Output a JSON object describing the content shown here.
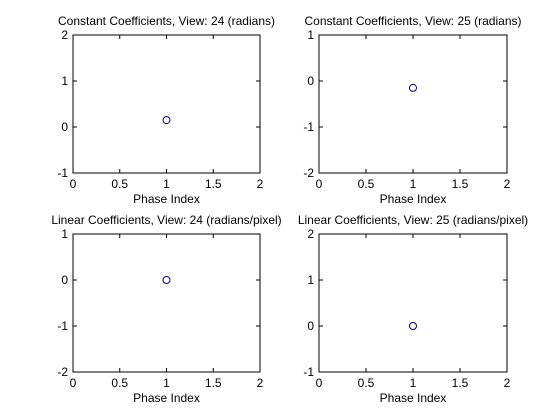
{
  "chart_data": [
    {
      "type": "scatter",
      "title": "Constant Coefficients, View: 24 (radians)",
      "xlabel": "Phase Index",
      "ylabel": "",
      "xlim": [
        0,
        2
      ],
      "ylim": [
        -1,
        2
      ],
      "xticks": [
        "0",
        "0.5",
        "1",
        "1.5",
        "2"
      ],
      "yticks": [
        "-1",
        "0",
        "1",
        "2"
      ],
      "points": [
        {
          "x": 1,
          "y": 0.15
        }
      ],
      "marker": "circle",
      "marker_color": "#00007f",
      "grid": false
    },
    {
      "type": "scatter",
      "title": "Constant Coefficients, View: 25 (radians)",
      "xlabel": "Phase Index",
      "ylabel": "",
      "xlim": [
        0,
        2
      ],
      "ylim": [
        -2,
        1
      ],
      "xticks": [
        "0",
        "0.5",
        "1",
        "1.5",
        "2"
      ],
      "yticks": [
        "-2",
        "-1",
        "0",
        "1"
      ],
      "points": [
        {
          "x": 1,
          "y": -0.15
        }
      ],
      "marker": "circle",
      "marker_color": "#00007f",
      "grid": false
    },
    {
      "type": "scatter",
      "title": "Linear Coefficients, View: 24 (radians/pixel)",
      "xlabel": "Phase Index",
      "ylabel": "",
      "xlim": [
        0,
        2
      ],
      "ylim": [
        -2,
        1
      ],
      "xticks": [
        "0",
        "0.5",
        "1",
        "1.5",
        "2"
      ],
      "yticks": [
        "-2",
        "-1",
        "0",
        "1"
      ],
      "points": [
        {
          "x": 1,
          "y": 0
        }
      ],
      "marker": "circle",
      "marker_color": "#00007f",
      "grid": false
    },
    {
      "type": "scatter",
      "title": "Linear Coefficients, View: 25 (radians/pixel)",
      "xlabel": "Phase Index",
      "ylabel": "",
      "xlim": [
        0,
        2
      ],
      "ylim": [
        -1,
        2
      ],
      "xticks": [
        "0",
        "0.5",
        "1",
        "1.5",
        "2"
      ],
      "yticks": [
        "-1",
        "0",
        "1",
        "2"
      ],
      "points": [
        {
          "x": 1,
          "y": 0
        }
      ],
      "marker": "circle",
      "marker_color": "#00007f",
      "grid": false
    }
  ]
}
